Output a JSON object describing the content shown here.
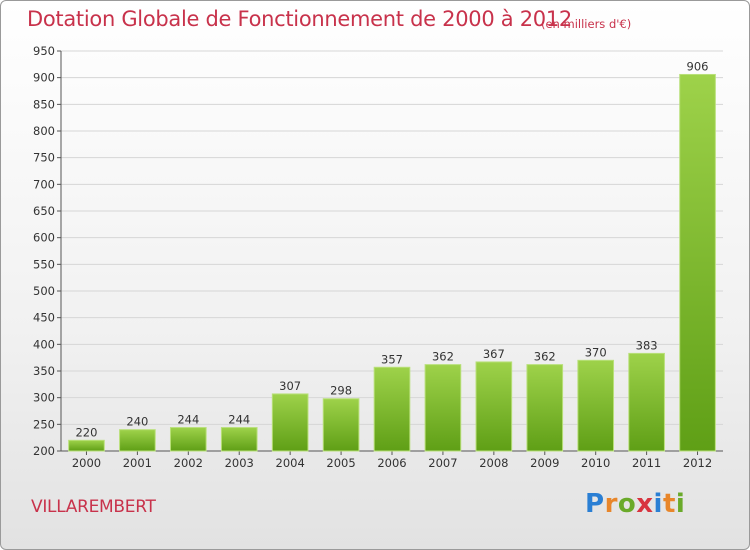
{
  "header": {
    "title": "Dotation Globale de Fonctionnement de 2000 à 2012",
    "subtitle": "(en milliers d'€)"
  },
  "footer": {
    "commune": "VILLAREMBERT",
    "logo_text": "Proxiti",
    "logo_letters": [
      {
        "char": "P",
        "color": "#2a7fd4"
      },
      {
        "char": "r",
        "color": "#e8862a"
      },
      {
        "char": "o",
        "color": "#6aaa2a"
      },
      {
        "char": "x",
        "color": "#d8343f"
      },
      {
        "char": "i",
        "color": "#2a7fd4"
      },
      {
        "char": "t",
        "color": "#e8862a"
      },
      {
        "char": "i",
        "color": "#6aaa2a"
      }
    ]
  },
  "chart_data": {
    "type": "bar",
    "title": "Dotation Globale de Fonctionnement de 2000 à 2012",
    "subtitle": "(en milliers d'€)",
    "categories": [
      "2000",
      "2001",
      "2002",
      "2003",
      "2004",
      "2005",
      "2006",
      "2007",
      "2008",
      "2009",
      "2010",
      "2011",
      "2012"
    ],
    "values": [
      220,
      240,
      244,
      244,
      307,
      298,
      357,
      362,
      367,
      362,
      370,
      383,
      906
    ],
    "ylim": [
      200,
      950
    ],
    "yticks": [
      200,
      250,
      300,
      350,
      400,
      450,
      500,
      550,
      600,
      650,
      700,
      750,
      800,
      850,
      900,
      950
    ],
    "grid": true,
    "colors": {
      "bar_light": "#9ed24a",
      "bar_dark": "#5f9f16",
      "grid": "#d6d6d6",
      "text": "#333333",
      "title": "#c8324b"
    }
  }
}
